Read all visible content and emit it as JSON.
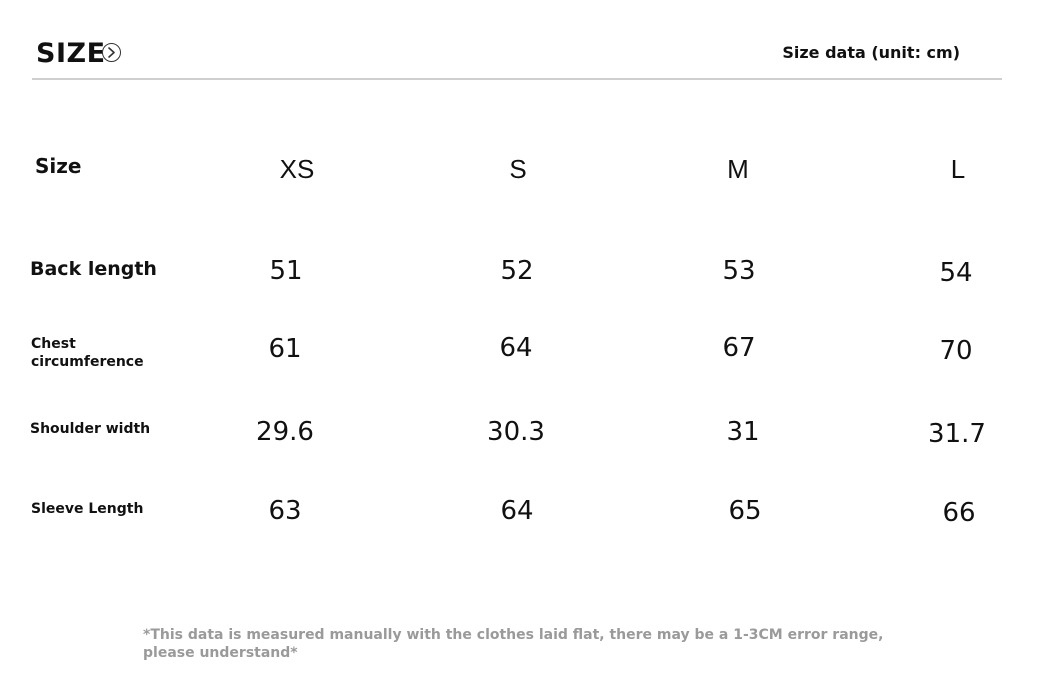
{
  "header": {
    "title": "SIZE",
    "unit_label": "Size data (unit: cm)"
  },
  "table": {
    "corner_label": "Size",
    "sizes": [
      "XS",
      "S",
      "M",
      "L"
    ],
    "rows": [
      {
        "label": "Back length",
        "values": [
          "51",
          "52",
          "53",
          "54"
        ]
      },
      {
        "label": "Chest circumference",
        "values": [
          "61",
          "64",
          "67",
          "70"
        ]
      },
      {
        "label": "Shoulder width",
        "values": [
          "29.6",
          "30.3",
          "31",
          "31.7"
        ]
      },
      {
        "label": "Sleeve Length",
        "values": [
          "63",
          "64",
          "65",
          "66"
        ]
      }
    ]
  },
  "footnote": "*This data is measured manually with the clothes laid flat, there may be a 1-3CM error range, please understand*",
  "icons": {
    "header_icon": "chevron-right-circle-icon"
  }
}
